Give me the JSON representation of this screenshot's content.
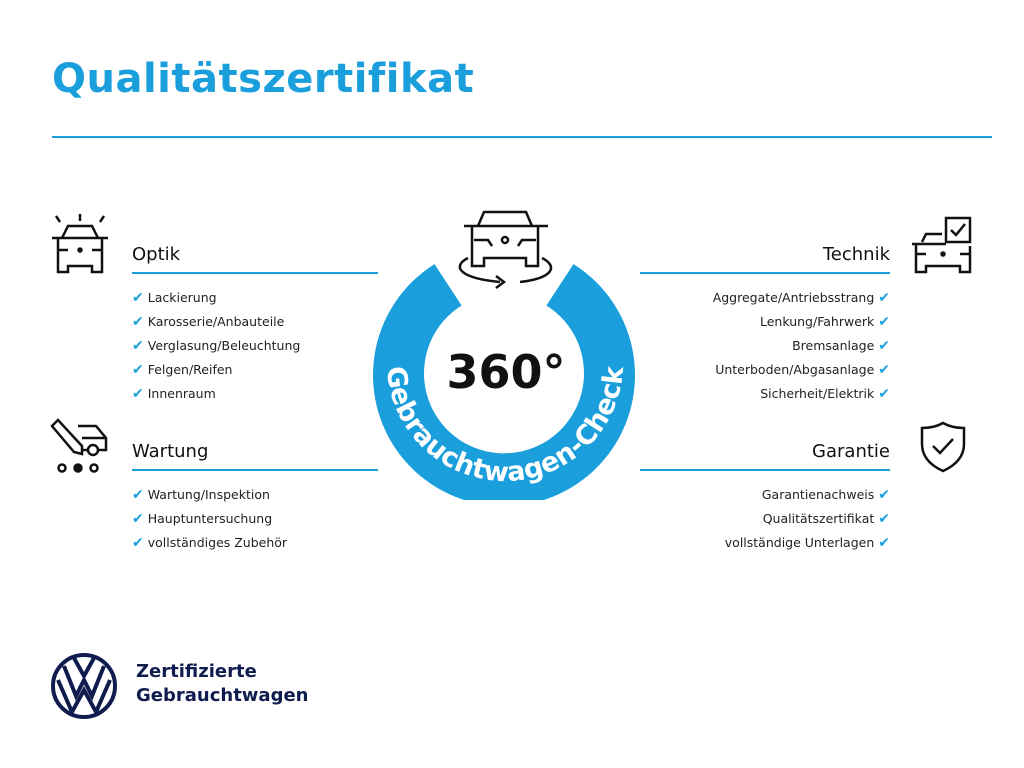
{
  "title": "Qualitätszertifikat",
  "accent_color": "#1a9fdc",
  "badge": {
    "main": "360°",
    "ring_text": "Gebrauchtwagen-Check",
    "icon": "car-rotate-icon"
  },
  "sections": {
    "optik": {
      "heading": "Optik",
      "icon": "car-lights-icon",
      "items": [
        "Lackierung",
        "Karosserie/Anbauteile",
        "Verglasung/Beleuchtung",
        "Felgen/Reifen",
        "Innenraum"
      ]
    },
    "wartung": {
      "heading": "Wartung",
      "icon": "car-service-icon",
      "items": [
        "Wartung/Inspektion",
        "Hauptuntersuchung",
        "vollständiges Zubehör"
      ]
    },
    "technik": {
      "heading": "Technik",
      "icon": "car-checklist-icon",
      "items": [
        "Aggregate/Antriebsstrang",
        "Lenkung/Fahrwerk",
        "Bremsanlage",
        "Unterboden/Abgasanlage",
        "Sicherheit/Elektrik"
      ]
    },
    "garantie": {
      "heading": "Garantie",
      "icon": "shield-check-icon",
      "items": [
        "Garantienachweis",
        "Qualitätszertifikat",
        "vollständige Unterlagen"
      ]
    }
  },
  "brand": {
    "line1": "Zertifizierte",
    "line2": "Gebrauchtwagen",
    "logo": "vw-logo"
  }
}
